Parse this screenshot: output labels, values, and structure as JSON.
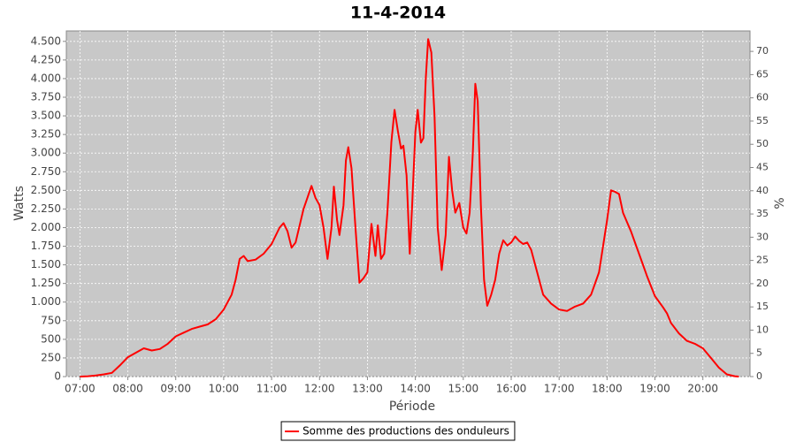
{
  "chart_data": {
    "type": "line",
    "title": "11-4-2014",
    "x_label": "Période",
    "y_label": "Watts",
    "y2_label": "%",
    "x": [
      "07:00",
      "07:10",
      "07:20",
      "07:30",
      "07:40",
      "07:50",
      "08:00",
      "08:10",
      "08:20",
      "08:30",
      "08:40",
      "08:50",
      "09:00",
      "09:10",
      "09:20",
      "09:30",
      "09:40",
      "09:50",
      "10:00",
      "10:10",
      "10:15",
      "10:20",
      "10:25",
      "10:30",
      "10:40",
      "10:50",
      "11:00",
      "11:10",
      "11:15",
      "11:20",
      "11:25",
      "11:30",
      "11:40",
      "11:50",
      "11:55",
      "12:00",
      "12:05",
      "12:10",
      "12:15",
      "12:18",
      "12:22",
      "12:25",
      "12:30",
      "12:33",
      "12:36",
      "12:40",
      "12:45",
      "12:50",
      "12:55",
      "13:00",
      "13:05",
      "13:10",
      "13:13",
      "13:17",
      "13:21",
      "13:25",
      "13:30",
      "13:34",
      "13:38",
      "13:42",
      "13:45",
      "13:49",
      "13:53",
      "13:56",
      "14:00",
      "14:03",
      "14:07",
      "14:10",
      "14:13",
      "14:16",
      "14:20",
      "14:24",
      "14:28",
      "14:33",
      "14:38",
      "14:42",
      "14:46",
      "14:50",
      "14:55",
      "15:00",
      "15:04",
      "15:08",
      "15:12",
      "15:15",
      "15:18",
      "15:22",
      "15:26",
      "15:30",
      "15:35",
      "15:40",
      "15:45",
      "15:50",
      "15:55",
      "16:00",
      "16:05",
      "16:10",
      "16:15",
      "16:20",
      "16:25",
      "16:30",
      "16:40",
      "16:50",
      "17:00",
      "17:10",
      "17:20",
      "17:30",
      "17:40",
      "17:50",
      "18:00",
      "18:05",
      "18:10",
      "18:15",
      "18:20",
      "18:30",
      "18:40",
      "18:50",
      "19:00",
      "19:10",
      "19:15",
      "19:20",
      "19:30",
      "19:40",
      "19:50",
      "20:00",
      "20:10",
      "20:20",
      "20:30",
      "20:40",
      "20:45"
    ],
    "series": [
      {
        "name": "Somme des productions des onduleurs",
        "color": "#ff0000",
        "values": [
          0,
          5,
          15,
          30,
          50,
          150,
          260,
          320,
          380,
          350,
          370,
          440,
          540,
          590,
          640,
          670,
          700,
          770,
          900,
          1100,
          1300,
          1580,
          1620,
          1550,
          1570,
          1650,
          1780,
          2000,
          2060,
          1950,
          1730,
          1800,
          2250,
          2560,
          2400,
          2300,
          2000,
          1580,
          2000,
          2550,
          2100,
          1900,
          2300,
          2900,
          3080,
          2800,
          2000,
          1260,
          1320,
          1400,
          2050,
          1620,
          2030,
          1580,
          1650,
          2200,
          3150,
          3580,
          3300,
          3060,
          3100,
          2700,
          1650,
          2300,
          3280,
          3580,
          3140,
          3200,
          4000,
          4530,
          4350,
          3500,
          2000,
          1430,
          1900,
          2950,
          2500,
          2200,
          2330,
          2000,
          1920,
          2200,
          3000,
          3930,
          3700,
          2300,
          1300,
          950,
          1100,
          1300,
          1650,
          1830,
          1760,
          1800,
          1880,
          1820,
          1780,
          1800,
          1700,
          1500,
          1100,
          980,
          900,
          880,
          940,
          980,
          1100,
          1400,
          2100,
          2500,
          2480,
          2450,
          2200,
          1950,
          1650,
          1350,
          1080,
          930,
          850,
          720,
          580,
          480,
          440,
          380,
          250,
          120,
          30,
          5,
          0
        ]
      }
    ],
    "xlim": [
      "06:43",
      "20:59"
    ],
    "xticks": [
      "07:00",
      "08:00",
      "09:00",
      "10:00",
      "11:00",
      "12:00",
      "13:00",
      "14:00",
      "15:00",
      "16:00",
      "17:00",
      "18:00",
      "19:00",
      "20:00"
    ],
    "ylim": [
      0,
      4640
    ],
    "yticks": [
      0,
      250,
      500,
      750,
      {
        "value": 1000,
        "label": "1.000"
      },
      {
        "value": 1250,
        "label": "1.250"
      },
      {
        "value": 1500,
        "label": "1.500"
      },
      {
        "value": 1750,
        "label": "1.750"
      },
      {
        "value": 2000,
        "label": "2.000"
      },
      {
        "value": 2250,
        "label": "2.250"
      },
      {
        "value": 2500,
        "label": "2.500"
      },
      {
        "value": 2750,
        "label": "2.750"
      },
      {
        "value": 3000,
        "label": "3.000"
      },
      {
        "value": 3250,
        "label": "3.250"
      },
      {
        "value": 3500,
        "label": "3.500"
      },
      {
        "value": 3750,
        "label": "3.750"
      },
      {
        "value": 4000,
        "label": "4.000"
      },
      {
        "value": 4250,
        "label": "4.250"
      },
      {
        "value": 4500,
        "label": "4.500"
      }
    ],
    "y2lim": [
      0,
      74.4
    ],
    "y2ticks": [
      0,
      5,
      10,
      15,
      20,
      25,
      30,
      35,
      40,
      45,
      50,
      55,
      60,
      65,
      70
    ],
    "grid": true,
    "legend": "bottom",
    "plot_background": "#c8c8c8"
  }
}
